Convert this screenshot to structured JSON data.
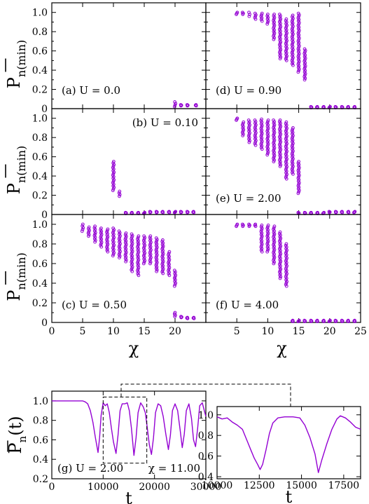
{
  "colors": {
    "accent": "#9400d3",
    "axis": "#000000",
    "background": "#ffffff"
  },
  "chart_data": [
    {
      "id": "a",
      "type": "scatter",
      "panel_label": "(a) U = 0.0",
      "xlim": [
        0,
        25
      ],
      "ylim": [
        0,
        1.1
      ],
      "yticks": [
        "0",
        "0.2",
        "0.4",
        "0.6",
        "0.8",
        "1.0"
      ],
      "ylabel_main": "P",
      "ylabel_sub": "n(min)",
      "clusters": [
        {
          "x": 20,
          "min": 0.02,
          "max": 0.07
        },
        {
          "x": 21,
          "min": 0.03,
          "max": 0.04
        },
        {
          "x": 22,
          "min": 0.03,
          "max": 0.04
        },
        {
          "x": 23.4,
          "min": 0.03,
          "max": 0.04
        }
      ]
    },
    {
      "id": "b",
      "type": "scatter",
      "panel_label": "(b) U = 0.10",
      "xlim": [
        0,
        25
      ],
      "ylim": [
        0,
        1.1
      ],
      "yticks": [
        "0",
        "0.2",
        "0.4",
        "0.6",
        "0.8",
        "1.0"
      ],
      "ylabel_main": "P",
      "ylabel_sub": "n(min)",
      "clusters": [
        {
          "x": 10,
          "min": 0.25,
          "max": 0.55
        },
        {
          "x": 11,
          "min": 0.19,
          "max": 0.24
        },
        {
          "x": 12,
          "min": 0.01,
          "max": 0.02
        },
        {
          "x": 13,
          "min": 0.01,
          "max": 0.02
        },
        {
          "x": 14,
          "min": 0.01,
          "max": 0.02
        },
        {
          "x": 15,
          "min": 0.01,
          "max": 0.02
        },
        {
          "x": 16,
          "min": 0.02,
          "max": 0.03
        },
        {
          "x": 17,
          "min": 0.02,
          "max": 0.03
        },
        {
          "x": 18,
          "min": 0.02,
          "max": 0.03
        },
        {
          "x": 19,
          "min": 0.02,
          "max": 0.03
        },
        {
          "x": 20,
          "min": 0.02,
          "max": 0.03
        },
        {
          "x": 21,
          "min": 0.02,
          "max": 0.03
        },
        {
          "x": 22,
          "min": 0.02,
          "max": 0.03
        },
        {
          "x": 23,
          "min": 0.02,
          "max": 0.03
        }
      ]
    },
    {
      "id": "c",
      "type": "scatter",
      "panel_label": "(c) U = 0.50",
      "xlim": [
        0,
        25
      ],
      "ylim": [
        0,
        1.1
      ],
      "xticks": [
        "0",
        "5",
        "10",
        "15",
        "20"
      ],
      "yticks": [
        "0",
        "0.2",
        "0.4",
        "0.6",
        "0.8",
        "1.0"
      ],
      "ylabel_main": "P",
      "ylabel_sub": "n(min)",
      "xlabel": "χ",
      "clusters": [
        {
          "x": 5,
          "min": 0.93,
          "max": 1.0
        },
        {
          "x": 6,
          "min": 0.88,
          "max": 0.97
        },
        {
          "x": 7,
          "min": 0.82,
          "max": 0.98
        },
        {
          "x": 8,
          "min": 0.77,
          "max": 0.96
        },
        {
          "x": 9,
          "min": 0.72,
          "max": 0.95
        },
        {
          "x": 10,
          "min": 0.68,
          "max": 0.96
        },
        {
          "x": 11,
          "min": 0.66,
          "max": 0.93
        },
        {
          "x": 12,
          "min": 0.62,
          "max": 0.91
        },
        {
          "x": 13,
          "min": 0.52,
          "max": 0.9
        },
        {
          "x": 14,
          "min": 0.48,
          "max": 0.88
        },
        {
          "x": 15,
          "min": 0.6,
          "max": 0.88
        },
        {
          "x": 16,
          "min": 0.6,
          "max": 0.88
        },
        {
          "x": 17,
          "min": 0.52,
          "max": 0.86
        },
        {
          "x": 18,
          "min": 0.5,
          "max": 0.84
        },
        {
          "x": 19,
          "min": 0.48,
          "max": 0.72
        },
        {
          "x": 20,
          "min": 0.37,
          "max": 0.53
        },
        {
          "x": 20,
          "min": 0.06,
          "max": 0.1
        },
        {
          "x": 21,
          "min": 0.05,
          "max": 0.06
        },
        {
          "x": 22,
          "min": 0.04,
          "max": 0.05
        },
        {
          "x": 23,
          "min": 0.04,
          "max": 0.05
        }
      ]
    },
    {
      "id": "d",
      "type": "scatter",
      "panel_label": "(d) U = 0.90",
      "xlim": [
        0,
        25
      ],
      "ylim": [
        0,
        1.1
      ],
      "clusters": [
        {
          "x": 5,
          "min": 0.98,
          "max": 1.0
        },
        {
          "x": 6,
          "min": 0.98,
          "max": 1.0
        },
        {
          "x": 7,
          "min": 0.96,
          "max": 1.0
        },
        {
          "x": 8,
          "min": 0.93,
          "max": 0.99
        },
        {
          "x": 9,
          "min": 0.91,
          "max": 0.99
        },
        {
          "x": 10,
          "min": 0.88,
          "max": 0.98
        },
        {
          "x": 11,
          "min": 0.72,
          "max": 0.98
        },
        {
          "x": 12,
          "min": 0.52,
          "max": 0.98
        },
        {
          "x": 13,
          "min": 0.5,
          "max": 0.93
        },
        {
          "x": 14,
          "min": 0.45,
          "max": 0.97
        },
        {
          "x": 15,
          "min": 0.38,
          "max": 0.99
        },
        {
          "x": 16,
          "min": 0.3,
          "max": 0.62
        },
        {
          "x": 17,
          "min": 0.01,
          "max": 0.02
        },
        {
          "x": 18,
          "min": 0.01,
          "max": 0.02
        },
        {
          "x": 19,
          "min": 0.01,
          "max": 0.02
        },
        {
          "x": 20,
          "min": 0.01,
          "max": 0.02
        },
        {
          "x": 21,
          "min": 0.01,
          "max": 0.02
        },
        {
          "x": 22,
          "min": 0.01,
          "max": 0.02
        },
        {
          "x": 23,
          "min": 0.01,
          "max": 0.02
        },
        {
          "x": 24,
          "min": 0.01,
          "max": 0.02
        }
      ]
    },
    {
      "id": "e",
      "type": "scatter",
      "panel_label": "(e) U = 2.00",
      "xlim": [
        0,
        25
      ],
      "ylim": [
        0,
        1.1
      ],
      "clusters": [
        {
          "x": 5,
          "min": 0.98,
          "max": 1.0
        },
        {
          "x": 6,
          "min": 0.82,
          "max": 0.96
        },
        {
          "x": 7,
          "min": 0.75,
          "max": 0.98
        },
        {
          "x": 8,
          "min": 0.72,
          "max": 0.98
        },
        {
          "x": 9,
          "min": 0.68,
          "max": 0.99
        },
        {
          "x": 10,
          "min": 0.62,
          "max": 0.98
        },
        {
          "x": 11,
          "min": 0.55,
          "max": 0.98
        },
        {
          "x": 12,
          "min": 0.5,
          "max": 0.98
        },
        {
          "x": 13,
          "min": 0.37,
          "max": 0.96
        },
        {
          "x": 14,
          "min": 0.42,
          "max": 0.9
        },
        {
          "x": 15,
          "min": 0.22,
          "max": 0.55
        },
        {
          "x": 15,
          "min": 0.01,
          "max": 0.02
        },
        {
          "x": 16,
          "min": 0.01,
          "max": 0.02
        },
        {
          "x": 17,
          "min": 0.01,
          "max": 0.02
        },
        {
          "x": 18,
          "min": 0.01,
          "max": 0.02
        },
        {
          "x": 19,
          "min": 0.01,
          "max": 0.02
        },
        {
          "x": 20,
          "min": 0.02,
          "max": 0.03
        },
        {
          "x": 21,
          "min": 0.02,
          "max": 0.03
        },
        {
          "x": 22,
          "min": 0.02,
          "max": 0.03
        },
        {
          "x": 23,
          "min": 0.02,
          "max": 0.03
        },
        {
          "x": 24,
          "min": 0.02,
          "max": 0.03
        }
      ]
    },
    {
      "id": "f",
      "type": "scatter",
      "panel_label": "(f) U = 4.00",
      "xlim": [
        0,
        25
      ],
      "ylim": [
        0,
        1.1
      ],
      "xticks": [
        "5",
        "10",
        "15",
        "20",
        "25"
      ],
      "xlabel": "χ",
      "clusters": [
        {
          "x": 5,
          "min": 0.98,
          "max": 1.0
        },
        {
          "x": 6,
          "min": 0.98,
          "max": 1.0
        },
        {
          "x": 7,
          "min": 0.98,
          "max": 1.0
        },
        {
          "x": 8,
          "min": 0.98,
          "max": 1.0
        },
        {
          "x": 9,
          "min": 0.72,
          "max": 0.99
        },
        {
          "x": 10,
          "min": 0.72,
          "max": 0.99
        },
        {
          "x": 11,
          "min": 0.6,
          "max": 0.98
        },
        {
          "x": 12,
          "min": 0.45,
          "max": 0.92
        },
        {
          "x": 13,
          "min": 0.37,
          "max": 0.8
        },
        {
          "x": 14,
          "min": 0.01,
          "max": 0.02
        },
        {
          "x": 15,
          "min": 0.01,
          "max": 0.02
        },
        {
          "x": 16,
          "min": 0.01,
          "max": 0.02
        },
        {
          "x": 17,
          "min": 0.01,
          "max": 0.02
        },
        {
          "x": 18,
          "min": 0.01,
          "max": 0.02
        },
        {
          "x": 19,
          "min": 0.01,
          "max": 0.02
        },
        {
          "x": 20,
          "min": 0.01,
          "max": 0.02
        },
        {
          "x": 21,
          "min": 0.01,
          "max": 0.02
        },
        {
          "x": 22,
          "min": 0.01,
          "max": 0.02
        },
        {
          "x": 23,
          "min": 0.01,
          "max": 0.02
        },
        {
          "x": 24,
          "min": 0.01,
          "max": 0.02
        }
      ]
    },
    {
      "id": "g",
      "type": "line",
      "panel_label": "(g) U = 2.00",
      "chi_label": "χ = 11.00",
      "xlim": [
        0,
        30000
      ],
      "ylim": [
        0.2,
        1.1
      ],
      "xticks": [
        "0",
        "10000",
        "20000",
        "30000"
      ],
      "yticks": [
        "0.2",
        "0.4",
        "0.6",
        "0.8",
        "1.0"
      ],
      "xlabel": "t",
      "ylabel_main": "P",
      "ylabel_sub": "n",
      "ylabel_suffix": "(t)",
      "zoom_box": {
        "x": [
          10000,
          18500
        ],
        "y": [
          0.36,
          1.04
        ]
      },
      "points": [
        [
          0,
          1.0
        ],
        [
          6000,
          1.0
        ],
        [
          6500,
          0.99
        ],
        [
          7000,
          0.97
        ],
        [
          7500,
          0.9
        ],
        [
          8000,
          0.78
        ],
        [
          8500,
          0.62
        ],
        [
          9000,
          0.47
        ],
        [
          9300,
          0.62
        ],
        [
          9600,
          0.85
        ],
        [
          10000,
          0.98
        ],
        [
          10400,
          0.95
        ],
        [
          10800,
          0.97
        ],
        [
          11200,
          0.88
        ],
        [
          11600,
          0.72
        ],
        [
          12000,
          0.58
        ],
        [
          12500,
          0.46
        ],
        [
          12900,
          0.65
        ],
        [
          13300,
          0.9
        ],
        [
          13700,
          0.97
        ],
        [
          14200,
          0.97
        ],
        [
          14700,
          0.98
        ],
        [
          15100,
          0.9
        ],
        [
          15500,
          0.72
        ],
        [
          16000,
          0.44
        ],
        [
          16400,
          0.62
        ],
        [
          16800,
          0.88
        ],
        [
          17300,
          0.98
        ],
        [
          17800,
          0.94
        ],
        [
          18200,
          0.88
        ],
        [
          18600,
          0.72
        ],
        [
          19000,
          0.55
        ],
        [
          19400,
          0.45
        ],
        [
          19800,
          0.62
        ],
        [
          20200,
          0.88
        ],
        [
          20700,
          0.97
        ],
        [
          21200,
          0.95
        ],
        [
          21700,
          0.84
        ],
        [
          22200,
          0.66
        ],
        [
          22700,
          0.5
        ],
        [
          23100,
          0.65
        ],
        [
          23500,
          0.9
        ],
        [
          24000,
          0.97
        ],
        [
          24500,
          0.9
        ],
        [
          25000,
          0.7
        ],
        [
          25400,
          0.52
        ],
        [
          25800,
          0.66
        ],
        [
          26200,
          0.9
        ],
        [
          26700,
          0.97
        ],
        [
          27200,
          0.82
        ],
        [
          27600,
          0.6
        ],
        [
          28000,
          0.53
        ],
        [
          28400,
          0.72
        ],
        [
          28800,
          0.95
        ],
        [
          29300,
          0.98
        ],
        [
          29700,
          0.9
        ],
        [
          30000,
          0.84
        ]
      ]
    },
    {
      "id": "inset",
      "type": "line",
      "xlim": [
        10000,
        18500
      ],
      "ylim": [
        0.38,
        1.08
      ],
      "xticks": [
        "10000",
        "12500",
        "15000",
        "17500"
      ],
      "yticks": [
        "0.4",
        "0.6",
        "0.8",
        "1.0"
      ],
      "xlabel": "t",
      "points": [
        [
          10000,
          0.98
        ],
        [
          10300,
          0.96
        ],
        [
          10600,
          0.97
        ],
        [
          10900,
          0.93
        ],
        [
          11200,
          0.9
        ],
        [
          11500,
          0.86
        ],
        [
          11800,
          0.74
        ],
        [
          12000,
          0.66
        ],
        [
          12200,
          0.58
        ],
        [
          12400,
          0.52
        ],
        [
          12550,
          0.47
        ],
        [
          12700,
          0.52
        ],
        [
          12900,
          0.66
        ],
        [
          13100,
          0.82
        ],
        [
          13300,
          0.92
        ],
        [
          13600,
          0.97
        ],
        [
          14000,
          0.98
        ],
        [
          14500,
          0.98
        ],
        [
          14900,
          0.97
        ],
        [
          15200,
          0.9
        ],
        [
          15500,
          0.78
        ],
        [
          15800,
          0.62
        ],
        [
          16000,
          0.44
        ],
        [
          16200,
          0.56
        ],
        [
          16500,
          0.72
        ],
        [
          16800,
          0.86
        ],
        [
          17100,
          0.96
        ],
        [
          17300,
          0.99
        ],
        [
          17600,
          0.97
        ],
        [
          17900,
          0.93
        ],
        [
          18200,
          0.88
        ],
        [
          18500,
          0.86
        ]
      ]
    }
  ]
}
